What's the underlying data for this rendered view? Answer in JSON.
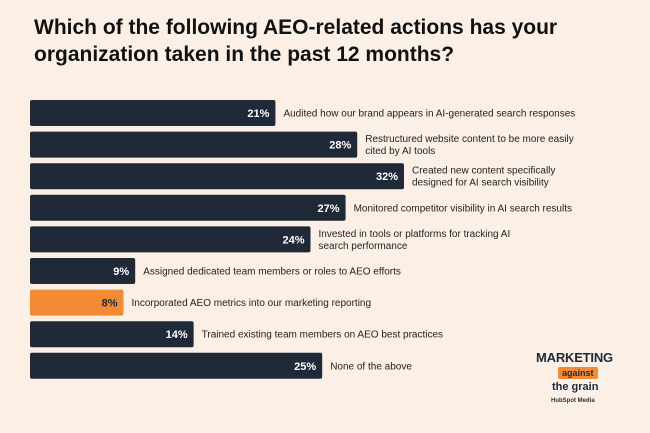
{
  "title": "Which of the following AEO-related actions has your organization taken in the past 12 months?",
  "colors": {
    "background": "#fbefe6",
    "bar": "#1f2937",
    "highlight": "#f28b33",
    "value_text": "#ffffff",
    "label_text": "#222222"
  },
  "logo": {
    "line1": "MARKETING",
    "line2": "against",
    "line3": "the grain",
    "line4": "HubSpot Media"
  },
  "chart_data": {
    "type": "bar",
    "orientation": "horizontal",
    "categories": [
      "Audited how our brand appears in AI-generated search responses",
      "Restructured website content to be more easily cited by AI tools",
      "Created new content specifically designed for AI search visibility",
      "Monitored competitor visibility in AI search results",
      "Invested in tools or platforms for tracking AI search performance",
      "Assigned dedicated team members or roles to AEO efforts",
      "Incorporated AEO metrics into our marketing reporting",
      "Trained existing team members on AEO best practices",
      "None of the above"
    ],
    "category_lines": [
      [
        "Audited how our brand appears in AI-generated search responses"
      ],
      [
        "Restructured website content to be more easily",
        "cited by AI tools"
      ],
      [
        "Created new content specifically",
        "designed for AI search visibility"
      ],
      [
        "Monitored competitor visibility in AI search results"
      ],
      [
        "Invested in tools or platforms for tracking AI",
        "search performance"
      ],
      [
        "Assigned dedicated team members or roles to AEO efforts"
      ],
      [
        "Incorporated AEO metrics into our marketing reporting"
      ],
      [
        "Trained existing team members on AEO best practices"
      ],
      [
        "None of the above"
      ]
    ],
    "values": [
      21,
      28,
      32,
      27,
      24,
      9,
      8,
      14,
      25
    ],
    "value_labels": [
      "21%",
      "28%",
      "32%",
      "27%",
      "24%",
      "9%",
      "8%",
      "14%",
      "25%"
    ],
    "highlight_index": 6,
    "xlim": [
      0,
      32
    ],
    "grid": false,
    "legend": "none"
  }
}
